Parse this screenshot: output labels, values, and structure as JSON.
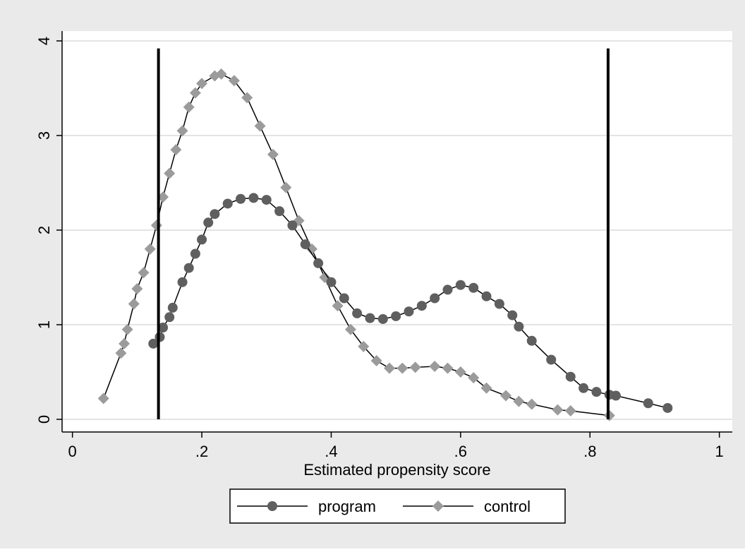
{
  "chart_data": {
    "type": "line",
    "xlabel": "Estimated propensity score",
    "xlim": [
      -0.016,
      1.02
    ],
    "ylim": [
      -0.134,
      4.104
    ],
    "xticks": [
      0,
      {
        "value": 0.2,
        "label": ".2"
      },
      {
        "value": 0.4,
        "label": ".4"
      },
      {
        "value": 0.6,
        "label": ".6"
      },
      {
        "value": 0.8,
        "label": ".8"
      },
      1
    ],
    "yticks": [
      0,
      1,
      2,
      3,
      4
    ],
    "grid": true,
    "xlines": [
      0.133,
      0.828
    ],
    "xline_range": [
      0,
      3.92
    ],
    "legend": "bottom",
    "series": [
      {
        "name": "program",
        "color": "#5f5f5f",
        "marker": "circle",
        "x": [
          0.125,
          0.135,
          0.14,
          0.15,
          0.155,
          0.17,
          0.18,
          0.19,
          0.2,
          0.21,
          0.22,
          0.24,
          0.26,
          0.28,
          0.3,
          0.32,
          0.34,
          0.36,
          0.38,
          0.4,
          0.42,
          0.44,
          0.46,
          0.48,
          0.5,
          0.52,
          0.54,
          0.56,
          0.58,
          0.6,
          0.62,
          0.64,
          0.66,
          0.68,
          0.69,
          0.71,
          0.74,
          0.77,
          0.79,
          0.81,
          0.83,
          0.84,
          0.89,
          0.92
        ],
        "values": [
          0.8,
          0.87,
          0.97,
          1.08,
          1.18,
          1.45,
          1.6,
          1.75,
          1.9,
          2.08,
          2.17,
          2.28,
          2.33,
          2.34,
          2.32,
          2.2,
          2.05,
          1.85,
          1.65,
          1.45,
          1.28,
          1.12,
          1.07,
          1.06,
          1.09,
          1.14,
          1.2,
          1.28,
          1.37,
          1.42,
          1.39,
          1.3,
          1.22,
          1.1,
          0.98,
          0.83,
          0.63,
          0.45,
          0.33,
          0.29,
          0.26,
          0.25,
          0.17,
          0.12
        ]
      },
      {
        "name": "control",
        "color": "#9b9b9b",
        "marker": "diamond",
        "x": [
          0.048,
          0.075,
          0.08,
          0.085,
          0.095,
          0.1,
          0.11,
          0.12,
          0.13,
          0.14,
          0.15,
          0.16,
          0.17,
          0.18,
          0.19,
          0.2,
          0.22,
          0.23,
          0.25,
          0.27,
          0.29,
          0.31,
          0.33,
          0.35,
          0.37,
          0.39,
          0.41,
          0.43,
          0.45,
          0.47,
          0.49,
          0.51,
          0.53,
          0.56,
          0.58,
          0.6,
          0.62,
          0.64,
          0.67,
          0.69,
          0.71,
          0.75,
          0.77,
          0.83
        ],
        "values": [
          0.22,
          0.7,
          0.8,
          0.95,
          1.22,
          1.38,
          1.55,
          1.8,
          2.05,
          2.35,
          2.6,
          2.85,
          3.05,
          3.3,
          3.45,
          3.55,
          3.63,
          3.65,
          3.58,
          3.4,
          3.1,
          2.8,
          2.45,
          2.1,
          1.8,
          1.5,
          1.2,
          0.95,
          0.77,
          0.62,
          0.54,
          0.54,
          0.55,
          0.56,
          0.54,
          0.5,
          0.44,
          0.33,
          0.25,
          0.19,
          0.16,
          0.1,
          0.09,
          0.04
        ]
      }
    ]
  }
}
